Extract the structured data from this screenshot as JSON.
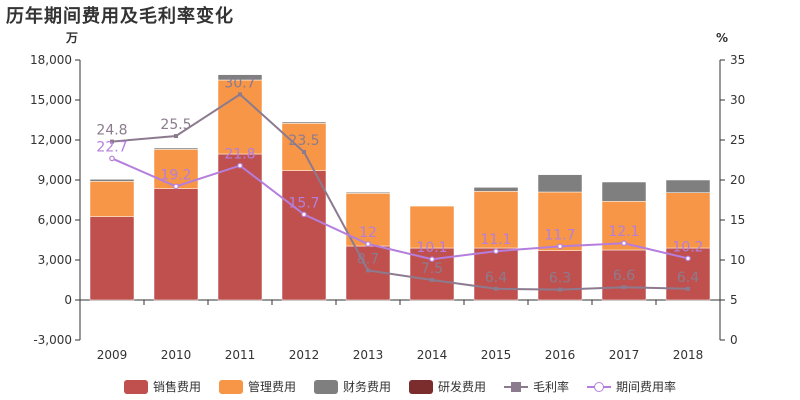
{
  "title": "历年期间费用及毛利率变化",
  "chart_data": {
    "type": "bar",
    "stacked": true,
    "categories": [
      "2009",
      "2010",
      "2011",
      "2012",
      "2013",
      "2014",
      "2015",
      "2016",
      "2017",
      "2018"
    ],
    "y_left": {
      "unit": "万",
      "ylim": [
        -3000,
        18000
      ],
      "ticks": [
        "-3,000",
        "0",
        "3,000",
        "6,000",
        "9,000",
        "12,000",
        "15,000",
        "18,000"
      ],
      "tick_values": [
        -3000,
        0,
        3000,
        6000,
        9000,
        12000,
        15000,
        18000
      ]
    },
    "y_right": {
      "unit": "%",
      "ylim": [
        0,
        35
      ],
      "ticks": [
        "0",
        "5",
        "10",
        "15",
        "20",
        "25",
        "30",
        "35"
      ],
      "tick_values": [
        0,
        5,
        10,
        15,
        20,
        25,
        30,
        35
      ]
    },
    "series": [
      {
        "name": "销售费用",
        "kind": "bar",
        "color": "#c0504d",
        "values": [
          6250,
          8350,
          10950,
          9700,
          4050,
          3900,
          3900,
          3700,
          3750,
          3900
        ]
      },
      {
        "name": "管理费用",
        "kind": "bar",
        "color": "#f79646",
        "values": [
          2650,
          2950,
          5550,
          3550,
          3950,
          3150,
          4250,
          4400,
          3650,
          4150
        ]
      },
      {
        "name": "财务费用",
        "kind": "bar",
        "color": "#7f7f7f",
        "values": [
          150,
          100,
          400,
          100,
          80,
          20,
          300,
          1300,
          1450,
          950
        ]
      },
      {
        "name": "研发费用",
        "kind": "bar",
        "color": "#7b2c2c",
        "values": [
          0,
          0,
          0,
          0,
          0,
          0,
          0,
          0,
          0,
          0
        ]
      },
      {
        "name": "毛利率",
        "kind": "line",
        "axis": "right",
        "color": "#8c7b8f",
        "values": [
          24.8,
          25.5,
          30.7,
          23.5,
          8.7,
          7.5,
          6.4,
          6.3,
          6.6,
          6.4
        ],
        "labels": [
          "24.8",
          "25.5",
          "30.7",
          "23.5",
          "8.7",
          "7.5",
          "6.4",
          "6.3",
          "6.6",
          "6.4"
        ]
      },
      {
        "name": "期间费用率",
        "kind": "line",
        "axis": "right",
        "color": "#b57edc",
        "values": [
          22.7,
          19.2,
          21.8,
          15.7,
          12,
          10.1,
          11.1,
          11.7,
          12.1,
          10.2
        ],
        "labels": [
          "22.7",
          "19.2",
          "21.8",
          "15.7",
          "12",
          "10.1",
          "11.1",
          "11.7",
          "12.1",
          "10.2"
        ]
      }
    ],
    "grid": false,
    "legend_position": "bottom"
  }
}
